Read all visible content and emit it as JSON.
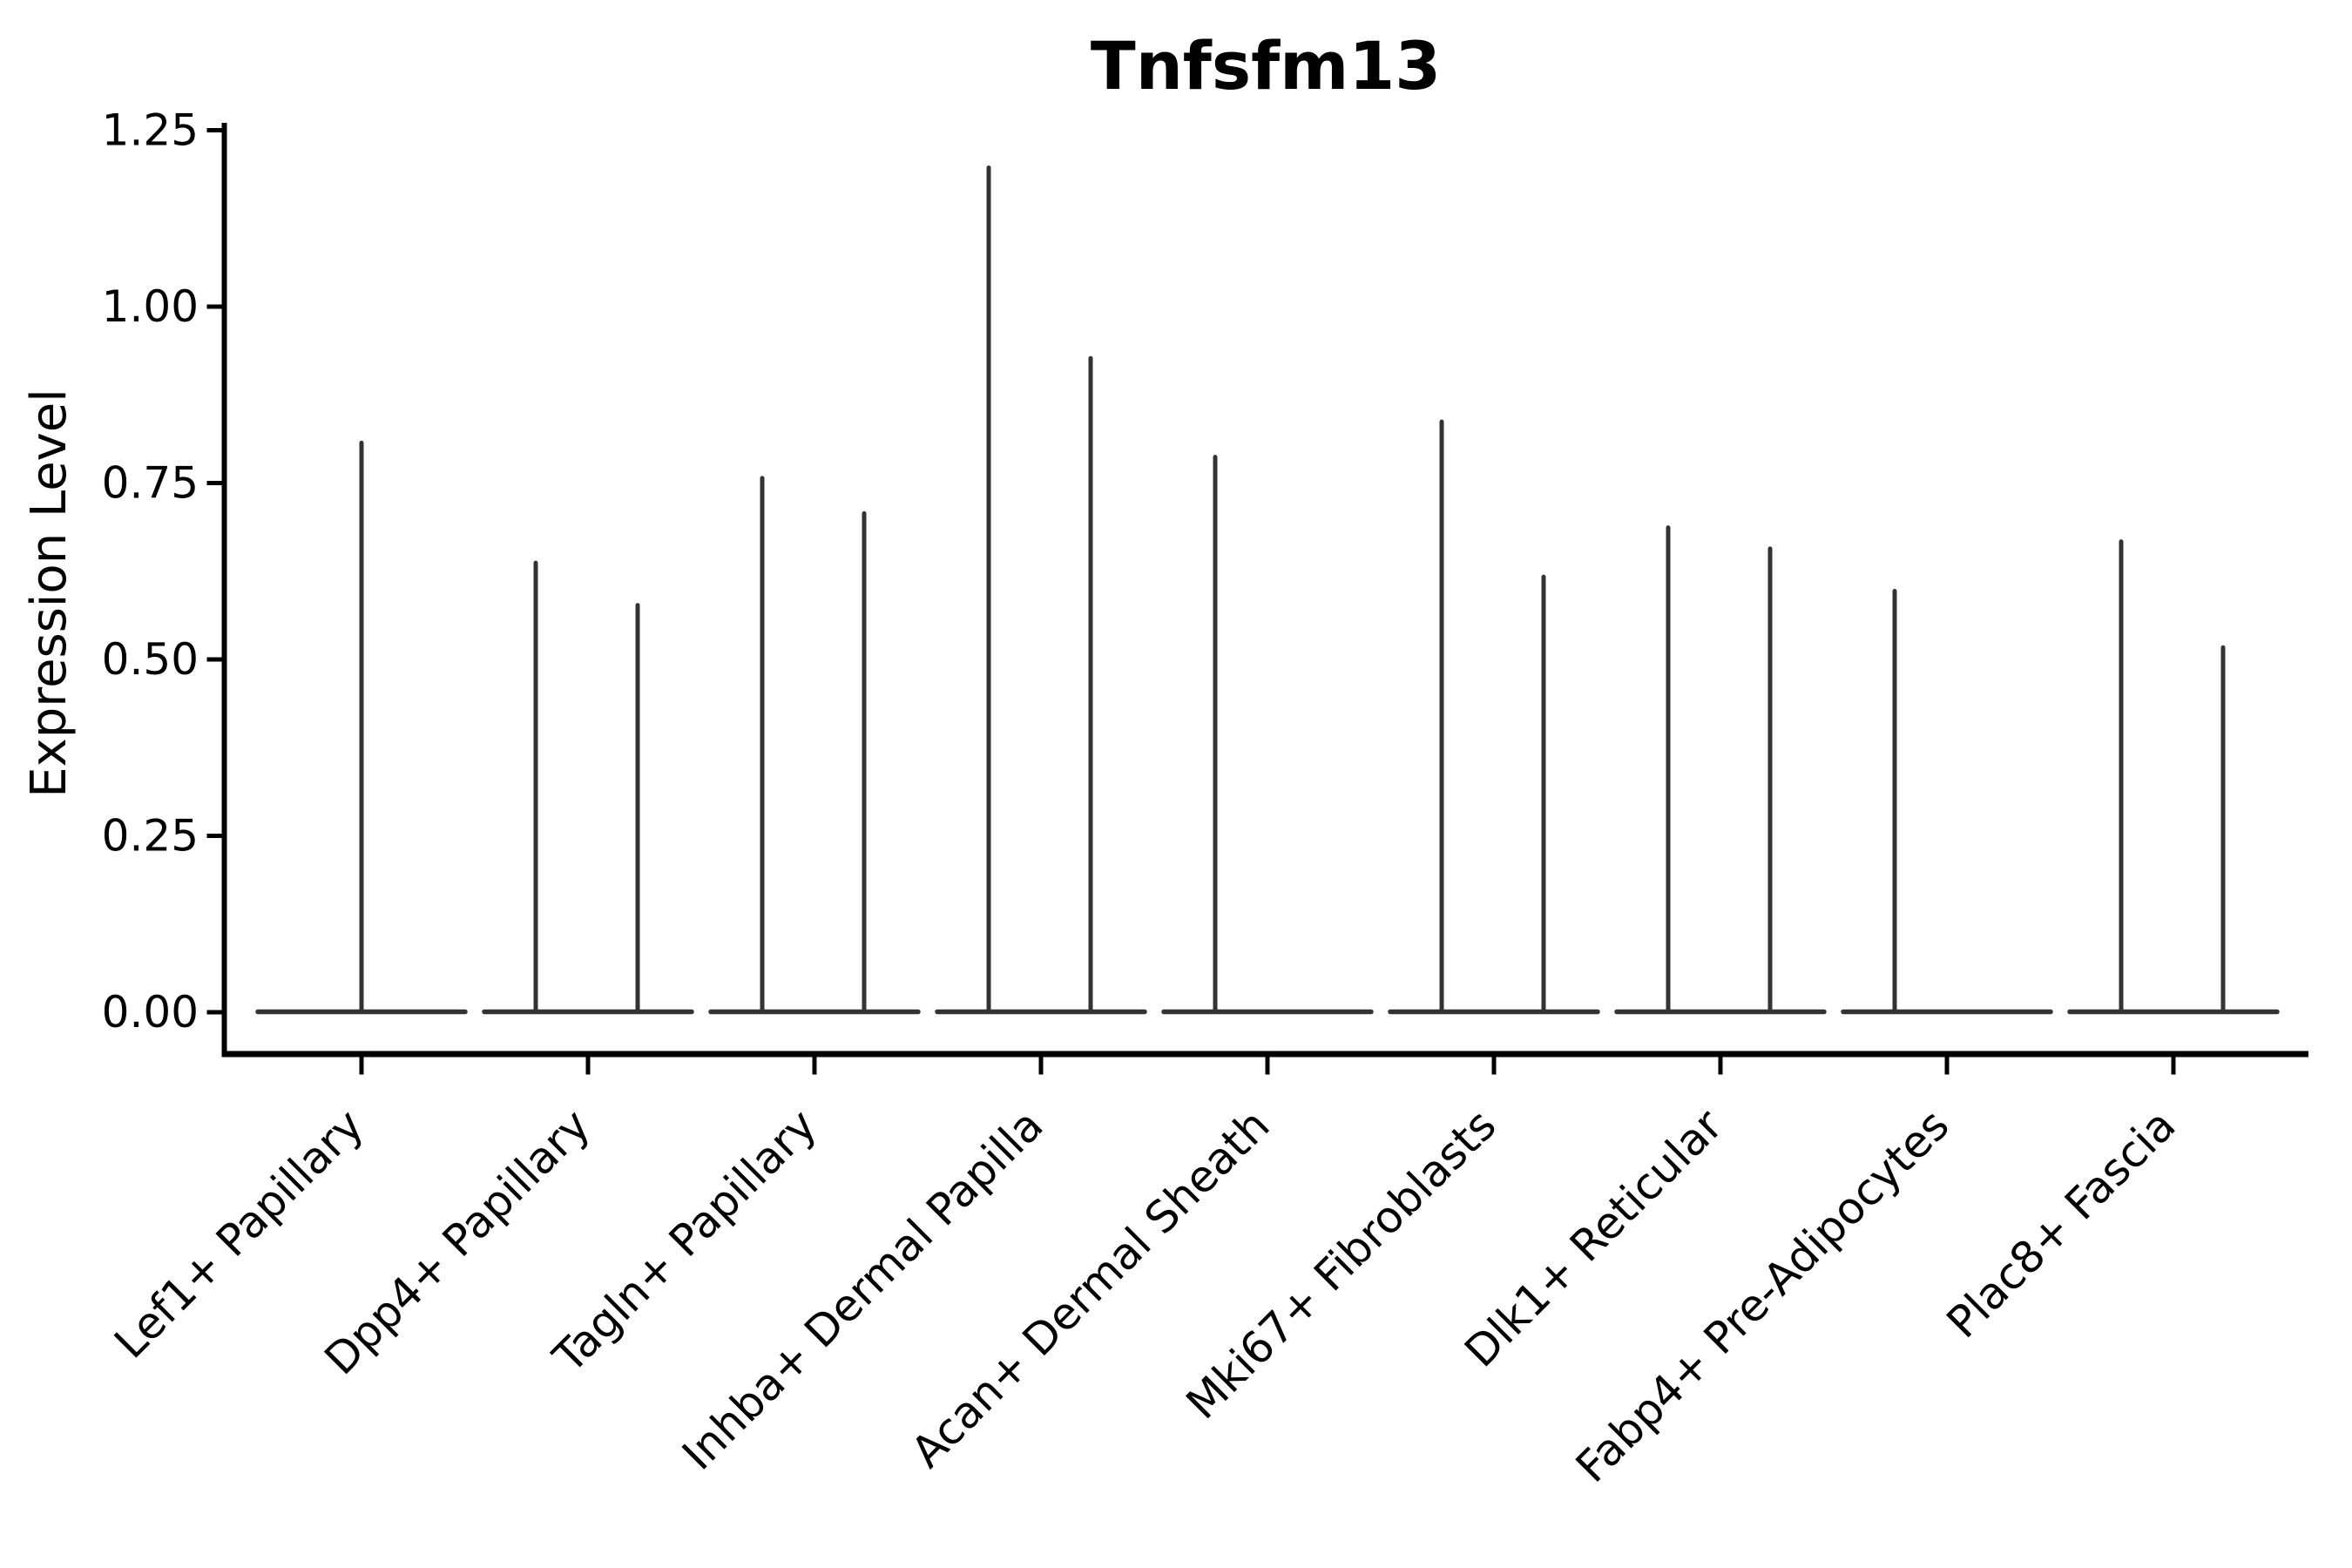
{
  "chart": {
    "title": "Tnfsfm13",
    "ylabel": "Expression Level"
  },
  "chart_data": {
    "type": "violin",
    "title": "Tnfsfm13",
    "xlabel": "",
    "ylabel": "Expression Level",
    "ylim": [
      -0.06,
      1.26
    ],
    "yticks": [
      "0.00",
      "0.25",
      "0.50",
      "0.75",
      "1.00",
      "1.25"
    ],
    "ytick_values": [
      0.0,
      0.25,
      0.5,
      0.75,
      1.0,
      1.25
    ],
    "grid": false,
    "legend": "none",
    "categories": [
      "Lef1+ Papillary",
      "Dpp4+ Papillary",
      "Tagln+ Papillary",
      "Inhba+ Dermal Papilla",
      "Acan+ Dermal Sheath",
      "Mki67+ Fibroblasts",
      "Dlk1+ Reticular",
      "Fabp4+ Pre-Adipocytes",
      "Plac8+ Fascia"
    ],
    "note": "Sparse expression violins: every violin is flat at 0 (wide base line) with a thin spike up to the maximum expression value. Categories with two violins show left/right group spikes; Lef1+ Papillary has a single centered violin; Acan+ Dermal Sheath and Fabp4+ Pre-Adipocytes show a spike only in the left group.",
    "violins": [
      {
        "category_index": 0,
        "slot": "center",
        "max": 0.81
      },
      {
        "category_index": 1,
        "slot": "left",
        "max": 0.64
      },
      {
        "category_index": 1,
        "slot": "right",
        "max": 0.58
      },
      {
        "category_index": 2,
        "slot": "left",
        "max": 0.76
      },
      {
        "category_index": 2,
        "slot": "right",
        "max": 0.71
      },
      {
        "category_index": 3,
        "slot": "left",
        "max": 1.2
      },
      {
        "category_index": 3,
        "slot": "right",
        "max": 0.93
      },
      {
        "category_index": 4,
        "slot": "left",
        "max": 0.79
      },
      {
        "category_index": 5,
        "slot": "left",
        "max": 0.84
      },
      {
        "category_index": 5,
        "slot": "right",
        "max": 0.62
      },
      {
        "category_index": 6,
        "slot": "left",
        "max": 0.69
      },
      {
        "category_index": 6,
        "slot": "right",
        "max": 0.66
      },
      {
        "category_index": 7,
        "slot": "left",
        "max": 0.6
      },
      {
        "category_index": 8,
        "slot": "left",
        "max": 0.67
      },
      {
        "category_index": 8,
        "slot": "right",
        "max": 0.52
      }
    ],
    "colors": {
      "violin_line": "#333333",
      "axis": "#000000",
      "text": "#000000",
      "background": "#ffffff"
    }
  }
}
